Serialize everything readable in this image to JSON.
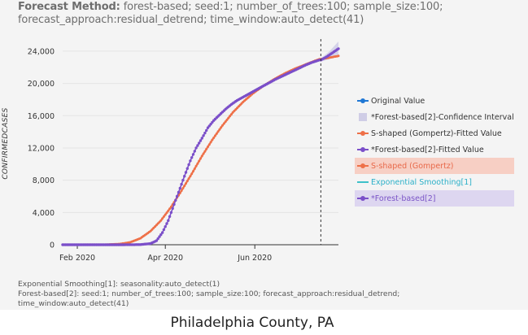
{
  "header": {
    "method_label": "Forecast Method:",
    "method_value": " forest-based; seed:1; number_of_trees:100; sample_size:100;",
    "line2": "forecast_approach:residual_detrend; time_window:auto_detect(41)"
  },
  "footnotes": [
    "Exponential Smoothing[1]: seasonality:auto_detect(1)",
    "Forest-based[2]: seed:1; number_of_trees:100; sample_size:100; forecast_approach:residual_detrend;",
    "time_window:auto_detect(41)"
  ],
  "caption": "Philadelphia County, PA",
  "colors": {
    "original": "#1f77d4",
    "forest": "#7b4fc9",
    "gompertz": "#ee7048",
    "exp": "#3ec1c9",
    "ci": "#cfcde6",
    "grid": "#e4e4e4",
    "axis": "#333333"
  },
  "legend": [
    {
      "label": "Original Value",
      "symbol": "dot-line",
      "color": "#1f77d4",
      "style": "plain"
    },
    {
      "label": "*Forest-based[2]-Confidence Interval",
      "symbol": "box",
      "color": "#cfcde6",
      "style": "plain"
    },
    {
      "label": "S-shaped (Gompertz)-Fitted Value",
      "symbol": "dot-line",
      "color": "#ee7048",
      "style": "plain"
    },
    {
      "label": "*Forest-based[2]-Fitted Value",
      "symbol": "dot-line",
      "color": "#7b4fc9",
      "style": "plain"
    },
    {
      "label": "S-shaped (Gompertz)",
      "symbol": "dot-line",
      "color": "#ee7048",
      "style": "hl-red"
    },
    {
      "label": "Exponential Smoothing[1]",
      "symbol": "line",
      "color": "#3ec1c9",
      "style": "teal"
    },
    {
      "label": "*Forest-based[2]",
      "symbol": "dot-line",
      "color": "#7b4fc9",
      "style": "hl-purple"
    }
  ],
  "chart_data": {
    "type": "line",
    "ylabel": "CONFIRMEDCASES",
    "xlabel": "",
    "y_ticks": [
      0,
      4000,
      8000,
      12000,
      16000,
      20000,
      24000
    ],
    "y_tick_labels": [
      "0",
      "4,000",
      "8,000",
      "12,000",
      "16,000",
      "20,000",
      "24,000"
    ],
    "ylim": [
      0,
      25500
    ],
    "x_ticks": [
      "2020-02-01",
      "2020-04-01",
      "2020-06-01"
    ],
    "x_tick_labels": [
      "Feb 2020",
      "Apr 2020",
      "Jun 2020"
    ],
    "xlim": [
      "2020-01-22",
      "2020-07-28"
    ],
    "forecast_start": "2020-07-16",
    "grid": "horizontal",
    "series": [
      {
        "name": "*Forest-based[2]-Fitted Value",
        "key": "forest",
        "points": [
          [
            "2020-01-22",
            0
          ],
          [
            "2020-03-01",
            0
          ],
          [
            "2020-03-15",
            20
          ],
          [
            "2020-03-22",
            150
          ],
          [
            "2020-03-26",
            500
          ],
          [
            "2020-03-30",
            1500
          ],
          [
            "2020-04-03",
            3000
          ],
          [
            "2020-04-07",
            5000
          ],
          [
            "2020-04-10",
            6500
          ],
          [
            "2020-04-14",
            8500
          ],
          [
            "2020-04-18",
            10400
          ],
          [
            "2020-04-22",
            12000
          ],
          [
            "2020-04-26",
            13200
          ],
          [
            "2020-04-30",
            14500
          ],
          [
            "2020-05-04",
            15400
          ],
          [
            "2020-05-08",
            16100
          ],
          [
            "2020-05-12",
            16800
          ],
          [
            "2020-05-16",
            17400
          ],
          [
            "2020-05-20",
            17900
          ],
          [
            "2020-05-24",
            18300
          ],
          [
            "2020-05-28",
            18700
          ],
          [
            "2020-06-01",
            19100
          ],
          [
            "2020-06-08",
            19800
          ],
          [
            "2020-06-15",
            20500
          ],
          [
            "2020-06-22",
            21100
          ],
          [
            "2020-06-29",
            21700
          ],
          [
            "2020-07-06",
            22300
          ],
          [
            "2020-07-10",
            22600
          ],
          [
            "2020-07-15",
            22900
          ]
        ]
      },
      {
        "name": "*Forest-based[2]",
        "key": "forest_forecast",
        "points": [
          [
            "2020-07-16",
            22900
          ],
          [
            "2020-07-20",
            23300
          ],
          [
            "2020-07-24",
            23800
          ],
          [
            "2020-07-28",
            24300
          ]
        ]
      },
      {
        "name": "*Forest-based[2]-Confidence Interval",
        "key": "ci",
        "lower": [
          [
            "2020-07-16",
            22700
          ],
          [
            "2020-07-22",
            23000
          ],
          [
            "2020-07-28",
            23400
          ]
        ],
        "upper": [
          [
            "2020-07-16",
            23100
          ],
          [
            "2020-07-22",
            24000
          ],
          [
            "2020-07-28",
            25200
          ]
        ]
      },
      {
        "name": "S-shaped (Gompertz)-Fitted Value",
        "key": "gompertz",
        "points": [
          [
            "2020-01-22",
            0
          ],
          [
            "2020-02-20",
            10
          ],
          [
            "2020-03-01",
            100
          ],
          [
            "2020-03-08",
            300
          ],
          [
            "2020-03-15",
            800
          ],
          [
            "2020-03-22",
            1700
          ],
          [
            "2020-03-29",
            3000
          ],
          [
            "2020-04-05",
            4700
          ],
          [
            "2020-04-12",
            6700
          ],
          [
            "2020-04-19",
            8800
          ],
          [
            "2020-04-26",
            11000
          ],
          [
            "2020-05-03",
            13000
          ],
          [
            "2020-05-10",
            14800
          ],
          [
            "2020-05-17",
            16400
          ],
          [
            "2020-05-24",
            17700
          ],
          [
            "2020-05-31",
            18800
          ],
          [
            "2020-06-07",
            19700
          ],
          [
            "2020-06-14",
            20500
          ],
          [
            "2020-06-21",
            21200
          ],
          [
            "2020-06-28",
            21800
          ],
          [
            "2020-07-05",
            22300
          ],
          [
            "2020-07-12",
            22800
          ],
          [
            "2020-07-15",
            23000
          ]
        ]
      },
      {
        "name": "S-shaped (Gompertz)",
        "key": "gompertz_forecast",
        "points": [
          [
            "2020-07-16",
            23000
          ],
          [
            "2020-07-22",
            23200
          ],
          [
            "2020-07-28",
            23400
          ]
        ]
      }
    ]
  }
}
